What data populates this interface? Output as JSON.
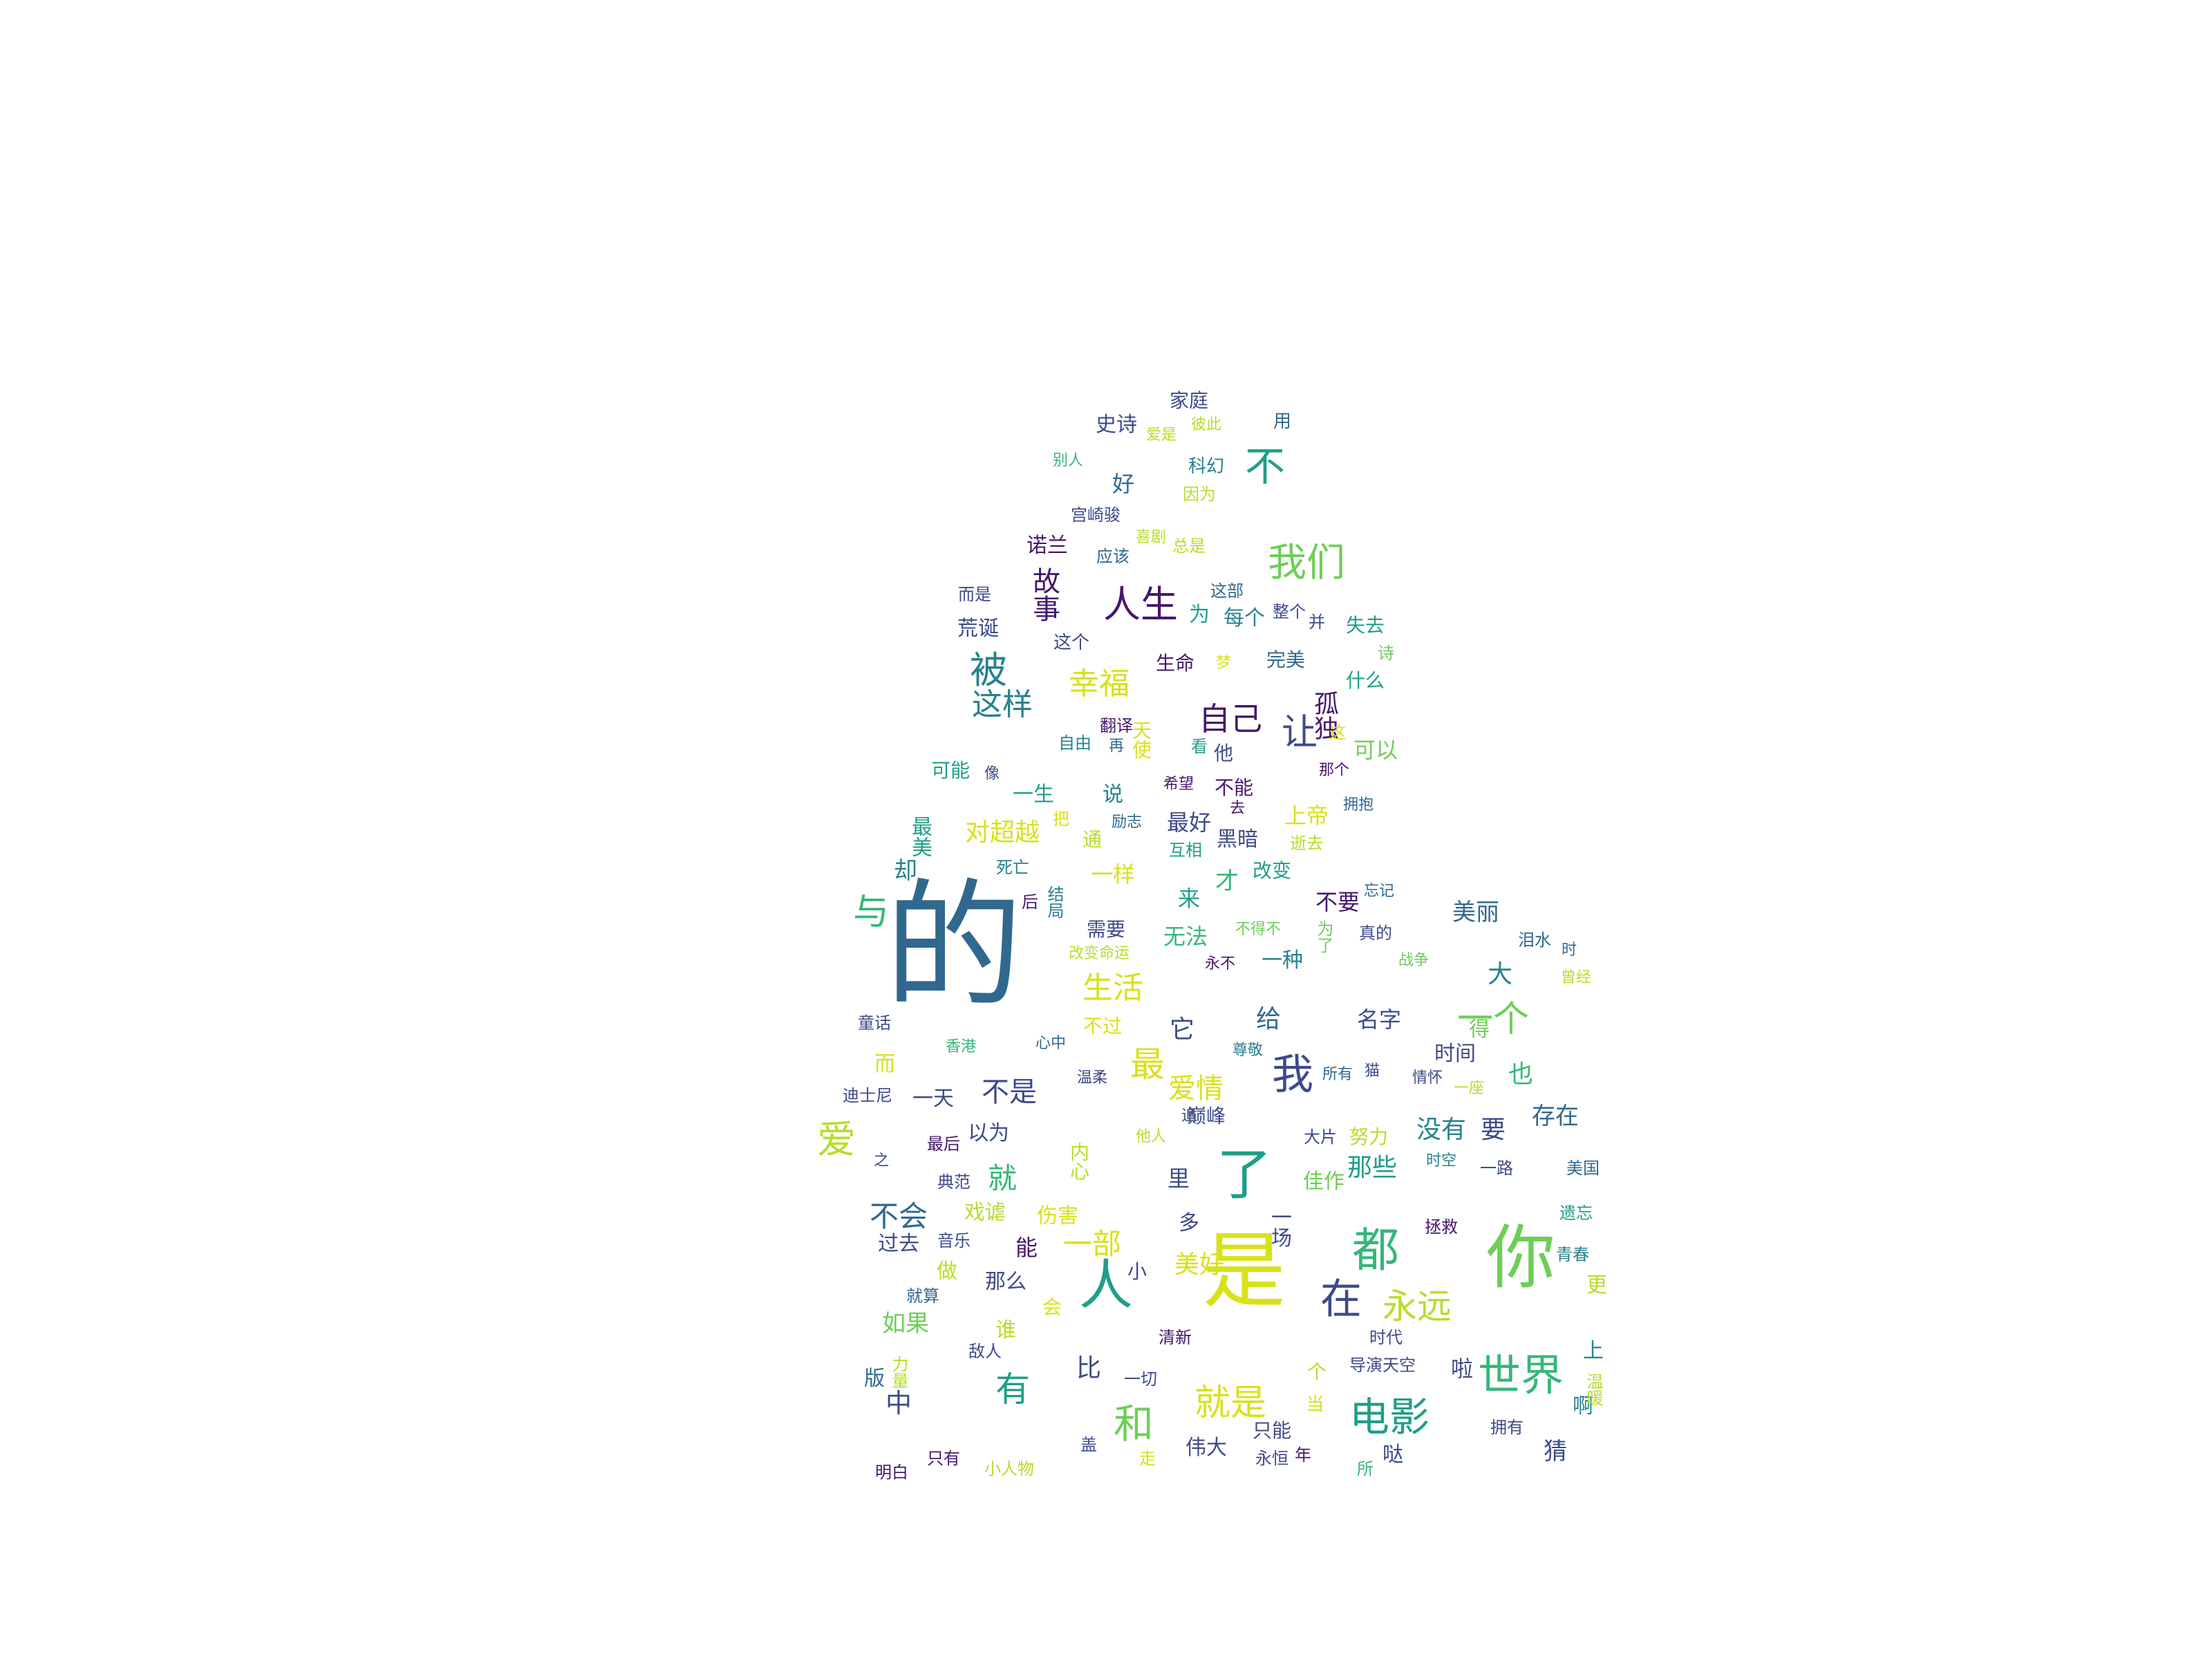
{
  "palette": {
    "dark_purple": "#46176a",
    "indigo": "#3e4a89",
    "slate_blue": "#31688e",
    "teal": "#26828e",
    "sea_green": "#1f9e89",
    "green": "#35b779",
    "light_green": "#6ece58",
    "yellow_green": "#b5de2b",
    "yellow": "#d8e219"
  },
  "words": [
    {
      "text": "的",
      "color": "slate_blue"
    },
    {
      "text": "是",
      "color": "yellow"
    },
    {
      "text": "你",
      "color": "light_green"
    },
    {
      "text": "了",
      "color": "sea_green"
    },
    {
      "text": "人",
      "color": "sea_green"
    },
    {
      "text": "都",
      "color": "green"
    },
    {
      "text": "世界",
      "color": "green"
    },
    {
      "text": "电影",
      "color": "sea_green"
    },
    {
      "text": "在",
      "color": "indigo"
    },
    {
      "text": "永远",
      "color": "yellow_green"
    },
    {
      "text": "和",
      "color": "light_green"
    },
    {
      "text": "就是",
      "color": "yellow"
    },
    {
      "text": "我们",
      "color": "light_green"
    },
    {
      "text": "人生",
      "color": "dark_purple"
    },
    {
      "text": "不",
      "color": "sea_green"
    },
    {
      "text": "被",
      "color": "teal"
    },
    {
      "text": "这样",
      "color": "teal"
    },
    {
      "text": "幸福",
      "color": "yellow"
    },
    {
      "text": "自己",
      "color": "dark_purple"
    },
    {
      "text": "让",
      "color": "indigo"
    },
    {
      "text": "与",
      "color": "green"
    },
    {
      "text": "爱",
      "color": "yellow_green"
    },
    {
      "text": "我",
      "color": "indigo"
    },
    {
      "text": "一个",
      "color": "light_green"
    },
    {
      "text": "生活",
      "color": "yellow"
    },
    {
      "text": "最",
      "color": "yellow"
    },
    {
      "text": "有",
      "color": "sea_green"
    },
    {
      "text": "一部",
      "color": "yellow"
    },
    {
      "text": "就",
      "color": "green"
    },
    {
      "text": "不会",
      "color": "slate_blue"
    },
    {
      "text": "不是",
      "color": "indigo"
    },
    {
      "text": "爱情",
      "color": "yellow"
    },
    {
      "text": "对超越",
      "color": "yellow"
    },
    {
      "text": "中",
      "color": "indigo"
    },
    {
      "text": "美好",
      "color": "yellow"
    },
    {
      "text": "如果",
      "color": "light_green"
    },
    {
      "text": "比",
      "color": "indigo"
    },
    {
      "text": "那些",
      "color": "sea_green"
    },
    {
      "text": "没有",
      "color": "teal"
    },
    {
      "text": "存在",
      "color": "slate_blue"
    },
    {
      "text": "美丽",
      "color": "slate_blue"
    },
    {
      "text": "给",
      "color": "slate_blue"
    },
    {
      "text": "名字",
      "color": "indigo"
    },
    {
      "text": "大",
      "color": "teal"
    },
    {
      "text": "也",
      "color": "green"
    },
    {
      "text": "要",
      "color": "indigo"
    },
    {
      "text": "啦",
      "color": "indigo"
    },
    {
      "text": "猜",
      "color": "indigo"
    },
    {
      "text": "上帝",
      "color": "yellow"
    },
    {
      "text": "可以",
      "color": "light_green"
    },
    {
      "text": "家庭",
      "color": "indigo"
    },
    {
      "text": "史诗",
      "color": "indigo"
    },
    {
      "text": "好",
      "color": "slate_blue"
    },
    {
      "text": "用",
      "color": "slate_blue"
    },
    {
      "text": "别人",
      "color": "green"
    },
    {
      "text": "爱是",
      "color": "yellow_green"
    },
    {
      "text": "彼此",
      "color": "yellow_green"
    },
    {
      "text": "科幻",
      "color": "teal"
    },
    {
      "text": "因为",
      "color": "yellow_green"
    },
    {
      "text": "宫崎骏",
      "color": "indigo"
    },
    {
      "text": "喜剧",
      "color": "yellow_green"
    },
    {
      "text": "诺兰",
      "color": "dark_purple"
    },
    {
      "text": "应该",
      "color": "slate_blue"
    },
    {
      "text": "总是",
      "color": "yellow_green"
    },
    {
      "text": "而是",
      "color": "indigo"
    },
    {
      "text": "故事",
      "color": "dark_purple"
    },
    {
      "text": "这部",
      "color": "slate_blue"
    },
    {
      "text": "荒诞",
      "color": "indigo"
    },
    {
      "text": "为",
      "color": "sea_green"
    },
    {
      "text": "每个",
      "color": "teal"
    },
    {
      "text": "整个",
      "color": "indigo"
    },
    {
      "text": "并",
      "color": "indigo"
    },
    {
      "text": "失去",
      "color": "sea_green"
    },
    {
      "text": "这个",
      "color": "indigo"
    },
    {
      "text": "生命",
      "color": "dark_purple"
    },
    {
      "text": "梦",
      "color": "yellow"
    },
    {
      "text": "完美",
      "color": "slate_blue"
    },
    {
      "text": "诗",
      "color": "light_green"
    },
    {
      "text": "孤独",
      "color": "dark_purple"
    },
    {
      "text": "什么",
      "color": "sea_green"
    },
    {
      "text": "自由",
      "color": "teal"
    },
    {
      "text": "翻译",
      "color": "dark_purple"
    },
    {
      "text": "天使",
      "color": "yellow"
    },
    {
      "text": "再",
      "color": "slate_blue"
    },
    {
      "text": "看",
      "color": "sea_green"
    },
    {
      "text": "他",
      "color": "indigo"
    },
    {
      "text": "这",
      "color": "yellow"
    },
    {
      "text": "可能",
      "color": "sea_green"
    },
    {
      "text": "像",
      "color": "indigo"
    },
    {
      "text": "那个",
      "color": "dark_purple"
    },
    {
      "text": "希望",
      "color": "dark_purple"
    },
    {
      "text": "不能",
      "color": "dark_purple"
    },
    {
      "text": "一生",
      "color": "sea_green"
    },
    {
      "text": "说",
      "color": "teal"
    },
    {
      "text": "最美",
      "color": "sea_green"
    },
    {
      "text": "把",
      "color": "yellow"
    },
    {
      "text": "励志",
      "color": "slate_blue"
    },
    {
      "text": "去",
      "color": "dark_purple"
    },
    {
      "text": "拥抱",
      "color": "slate_blue"
    },
    {
      "text": "最好",
      "color": "indigo"
    },
    {
      "text": "却",
      "color": "teal"
    },
    {
      "text": "通",
      "color": "yellow_green"
    },
    {
      "text": "黑暗",
      "color": "indigo"
    },
    {
      "text": "互相",
      "color": "sea_green"
    },
    {
      "text": "逝去",
      "color": "yellow_green"
    },
    {
      "text": "死亡",
      "color": "teal"
    },
    {
      "text": "一样",
      "color": "yellow"
    },
    {
      "text": "才",
      "color": "green"
    },
    {
      "text": "改变",
      "color": "sea_green"
    },
    {
      "text": "不要",
      "color": "dark_purple"
    },
    {
      "text": "忘记",
      "color": "slate_blue"
    },
    {
      "text": "后",
      "color": "dark_purple"
    },
    {
      "text": "结局",
      "color": "teal"
    },
    {
      "text": "来",
      "color": "sea_green"
    },
    {
      "text": "需要",
      "color": "indigo"
    },
    {
      "text": "无法",
      "color": "green"
    },
    {
      "text": "不得不",
      "color": "light_green"
    },
    {
      "text": "为了",
      "color": "light_green"
    },
    {
      "text": "真的",
      "color": "indigo"
    },
    {
      "text": "泪水",
      "color": "slate_blue"
    },
    {
      "text": "时",
      "color": "slate_blue"
    },
    {
      "text": "改变命运",
      "color": "yellow_green"
    },
    {
      "text": "永不",
      "color": "dark_purple"
    },
    {
      "text": "一种",
      "color": "teal"
    },
    {
      "text": "战争",
      "color": "light_green"
    },
    {
      "text": "曾经",
      "color": "yellow_green"
    },
    {
      "text": "童话",
      "color": "indigo"
    },
    {
      "text": "不过",
      "color": "yellow"
    },
    {
      "text": "它",
      "color": "indigo"
    },
    {
      "text": "得",
      "color": "light_green"
    },
    {
      "text": "香港",
      "color": "green"
    },
    {
      "text": "心中",
      "color": "slate_blue"
    },
    {
      "text": "尊敬",
      "color": "teal"
    },
    {
      "text": "时间",
      "color": "indigo"
    },
    {
      "text": "而",
      "color": "yellow"
    },
    {
      "text": "温柔",
      "color": "indigo"
    },
    {
      "text": "所有",
      "color": "slate_blue"
    },
    {
      "text": "猫",
      "color": "indigo"
    },
    {
      "text": "情怀",
      "color": "indigo"
    },
    {
      "text": "一座",
      "color": "yellow_green"
    },
    {
      "text": "迪士尼",
      "color": "indigo"
    },
    {
      "text": "一天",
      "color": "indigo"
    },
    {
      "text": "追",
      "color": "indigo"
    },
    {
      "text": "巅峰",
      "color": "indigo"
    },
    {
      "text": "以为",
      "color": "indigo"
    },
    {
      "text": "最后",
      "color": "dark_purple"
    },
    {
      "text": "大片",
      "color": "indigo"
    },
    {
      "text": "努力",
      "color": "yellow_green"
    },
    {
      "text": "他人",
      "color": "yellow_green"
    },
    {
      "text": "之",
      "color": "indigo"
    },
    {
      "text": "典范",
      "color": "indigo"
    },
    {
      "text": "内心",
      "color": "yellow_green"
    },
    {
      "text": "里",
      "color": "indigo"
    },
    {
      "text": "佳作",
      "color": "light_green"
    },
    {
      "text": "时空",
      "color": "teal"
    },
    {
      "text": "一路",
      "color": "indigo"
    },
    {
      "text": "美国",
      "color": "slate_blue"
    },
    {
      "text": "戏谑",
      "color": "yellow_green"
    },
    {
      "text": "伤害",
      "color": "yellow"
    },
    {
      "text": "多",
      "color": "indigo"
    },
    {
      "text": "一场",
      "color": "indigo"
    },
    {
      "text": "拯救",
      "color": "dark_purple"
    },
    {
      "text": "遗忘",
      "color": "sea_green"
    },
    {
      "text": "过去",
      "color": "indigo"
    },
    {
      "text": "音乐",
      "color": "indigo"
    },
    {
      "text": "能",
      "color": "dark_purple"
    },
    {
      "text": "小",
      "color": "indigo"
    },
    {
      "text": "做",
      "color": "yellow_green"
    },
    {
      "text": "青春",
      "color": "teal"
    },
    {
      "text": "就算",
      "color": "slate_blue"
    },
    {
      "text": "那么",
      "color": "indigo"
    },
    {
      "text": "会",
      "color": "yellow"
    },
    {
      "text": "更",
      "color": "yellow_green"
    },
    {
      "text": "谁",
      "color": "yellow_green"
    },
    {
      "text": "清新",
      "color": "dark_purple"
    },
    {
      "text": "时代",
      "color": "indigo"
    },
    {
      "text": "敌人",
      "color": "indigo"
    },
    {
      "text": "上",
      "color": "teal"
    },
    {
      "text": "版",
      "color": "slate_blue"
    },
    {
      "text": "力量",
      "color": "yellow_green"
    },
    {
      "text": "一切",
      "color": "indigo"
    },
    {
      "text": "个",
      "color": "yellow_green"
    },
    {
      "text": "导演天空",
      "color": "indigo"
    },
    {
      "text": "当",
      "color": "yellow"
    },
    {
      "text": "啊",
      "color": "teal"
    },
    {
      "text": "温暖",
      "color": "yellow_green"
    },
    {
      "text": "只能",
      "color": "indigo"
    },
    {
      "text": "拥有",
      "color": "indigo"
    },
    {
      "text": "盖",
      "color": "indigo"
    },
    {
      "text": "伟大",
      "color": "indigo"
    },
    {
      "text": "年",
      "color": "dark_purple"
    },
    {
      "text": "哒",
      "color": "indigo"
    },
    {
      "text": "走",
      "color": "yellow"
    },
    {
      "text": "永恒",
      "color": "indigo"
    },
    {
      "text": "所",
      "color": "green"
    },
    {
      "text": "明白",
      "color": "dark_purple"
    },
    {
      "text": "只有",
      "color": "dark_purple"
    },
    {
      "text": "小人物",
      "color": "yellow_green"
    }
  ]
}
